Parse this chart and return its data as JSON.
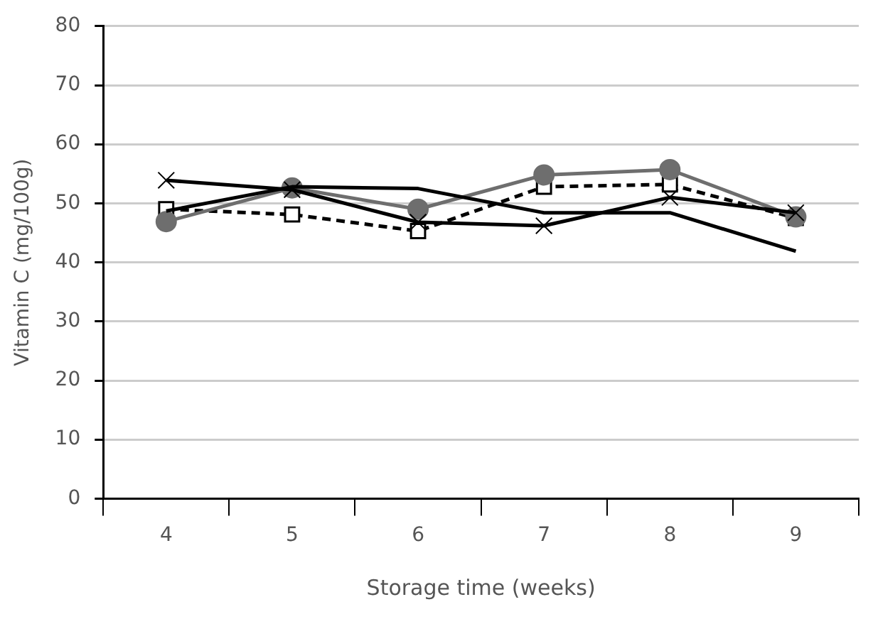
{
  "chart_data": {
    "type": "line",
    "xlabel": "Storage time (weeks)",
    "ylabel": "Vitamin C (mg/100g)",
    "categories": [
      "4",
      "5",
      "6",
      "7",
      "8",
      "9"
    ],
    "series": [
      {
        "color": "#000000",
        "marker": "none",
        "line_style": "solid",
        "values": [
          48.7,
          52.8,
          52.5,
          48.4,
          48.4,
          41.9
        ]
      },
      {
        "color": "#000000",
        "marker": "cross",
        "line_style": "solid",
        "values": [
          53.9,
          52.3,
          46.8,
          46.2,
          51.0,
          48.4
        ]
      },
      {
        "color": "#6e6e6e",
        "marker": "circle",
        "line_style": "solid",
        "values": [
          46.9,
          52.6,
          49.0,
          54.8,
          55.7,
          47.7
        ]
      },
      {
        "color": "#000000",
        "marker": "square",
        "line_style": "dashed",
        "values": [
          49.0,
          48.1,
          45.3,
          52.8,
          53.2,
          47.5
        ]
      }
    ],
    "ylim": [
      0,
      80
    ],
    "yticks": [
      0,
      10,
      20,
      30,
      40,
      50,
      60,
      70,
      80
    ],
    "grid": "y",
    "legend": false
  }
}
